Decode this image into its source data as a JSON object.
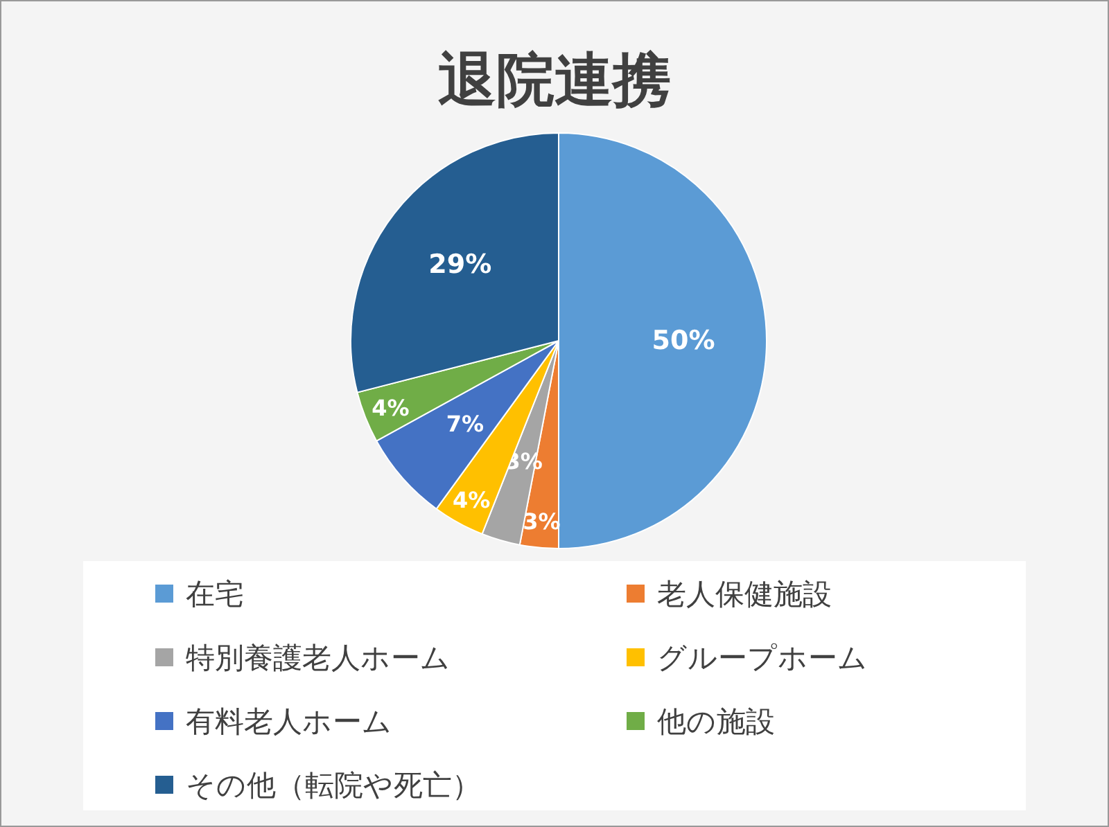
{
  "chart_data": {
    "type": "pie",
    "title": "退院連携",
    "categories": [
      "在宅",
      "老人保健施設",
      "特別養護老人ホーム",
      "グループホーム",
      "有料老人ホーム",
      "他の施設",
      "その他（転院や死亡）"
    ],
    "values": [
      50,
      3,
      3,
      4,
      7,
      4,
      29
    ],
    "colors": [
      "#5b9bd5",
      "#ed7d31",
      "#a5a5a5",
      "#ffc000",
      "#4472c4",
      "#70ad47",
      "#255e91"
    ],
    "value_labels": [
      "50%",
      "3%",
      "3%",
      "4%",
      "7%",
      "4%",
      "29%"
    ],
    "legend": "bottom"
  }
}
